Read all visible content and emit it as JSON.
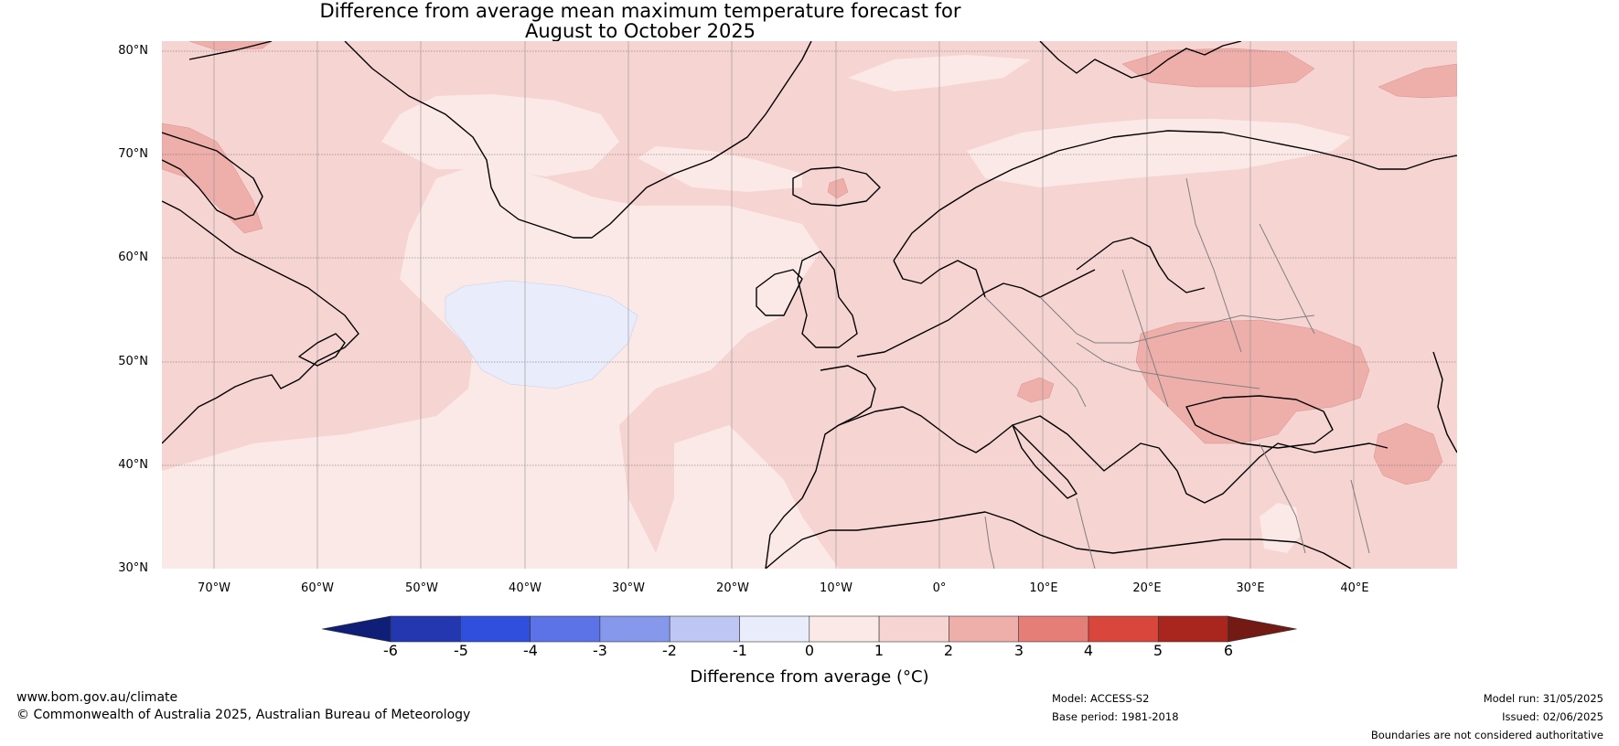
{
  "title": {
    "line1": "Difference from average mean maximum temperature forecast for",
    "line2": "August to October 2025"
  },
  "map": {
    "lat_labels": [
      "80°N",
      "70°N",
      "60°N",
      "50°N",
      "40°N",
      "30°N"
    ],
    "lon_labels": [
      "70°W",
      "60°W",
      "50°W",
      "40°W",
      "30°W",
      "20°W",
      "10°W",
      "0°",
      "10°E",
      "20°E",
      "30°E",
      "40°E"
    ],
    "colors": {
      "ocean_base": "#fbe9e7",
      "warm_1_2": "#f6d4d2",
      "warm_2_3": "#eeaeaa",
      "cool_m1_0": "#e8ecfb",
      "coast": "#000000",
      "border": "#808080",
      "grid": "#606060"
    }
  },
  "colorbar": {
    "title": "Difference from average (°C)",
    "ticks": [
      "-6",
      "-5",
      "-4",
      "-3",
      "-2",
      "-1",
      "0",
      "1",
      "2",
      "3",
      "4",
      "5",
      "6"
    ],
    "colors": [
      "#0f1f78",
      "#2338b0",
      "#2f4fdc",
      "#5b73e6",
      "#8698ec",
      "#bec7f4",
      "#e8ecfb",
      "#fbe9e7",
      "#f6d4d2",
      "#eeaeaa",
      "#e67e78",
      "#d9463b",
      "#a8261e",
      "#731a15"
    ]
  },
  "footer": {
    "url": "www.bom.gov.au/climate",
    "copyright": "© Commonwealth of Australia 2025, Australian Bureau of Meteorology",
    "model": "Model: ACCESS-S2",
    "base_period": "Base period: 1981-2018",
    "model_run": "Model run: 31/05/2025",
    "issued": "Issued: 02/06/2025",
    "disclaimer": "Boundaries are not considered authoritative"
  }
}
